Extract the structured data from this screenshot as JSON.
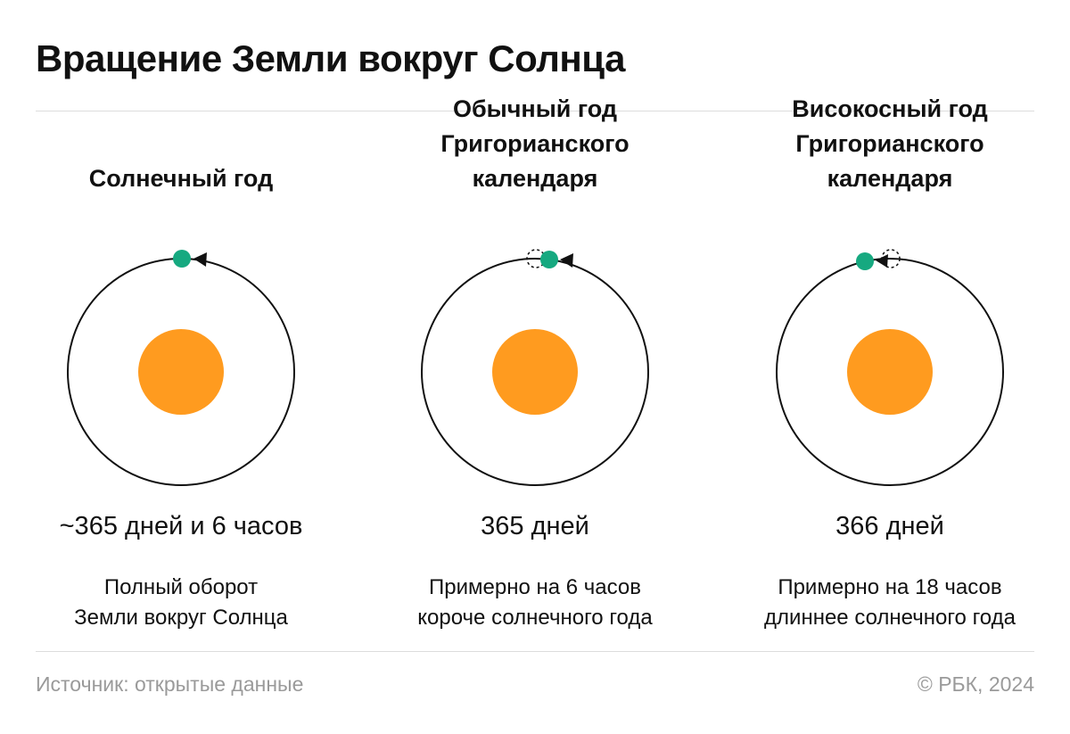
{
  "title": "Вращение Земли вокруг Солнца",
  "colors": {
    "sun": "#FF9B1F",
    "earth": "#16A980",
    "orbit": "#111111",
    "rule": "#DDDDDD",
    "footer_text": "#9A9A9A"
  },
  "columns": [
    {
      "heading": [
        "Солнечный год"
      ],
      "days": "~365 дней и 6 часов",
      "description": [
        "Полный оборот",
        "Земли вокруг Солнца"
      ],
      "earth_offset": "none"
    },
    {
      "heading": [
        "Обычный год",
        "Григорианского",
        "календаря"
      ],
      "days": "365 дней",
      "description": [
        "Примерно на 6 часов",
        "короче солнечного года"
      ],
      "earth_offset": "behind"
    },
    {
      "heading": [
        "Високосный год",
        "Григорианского",
        "календаря"
      ],
      "days": "366 дней",
      "description": [
        "Примерно на 18 часов",
        "длиннее солнечного года"
      ],
      "earth_offset": "ahead"
    }
  ],
  "footer": {
    "source": "Источник: открытые данные",
    "copyright": "© РБК, 2024"
  }
}
